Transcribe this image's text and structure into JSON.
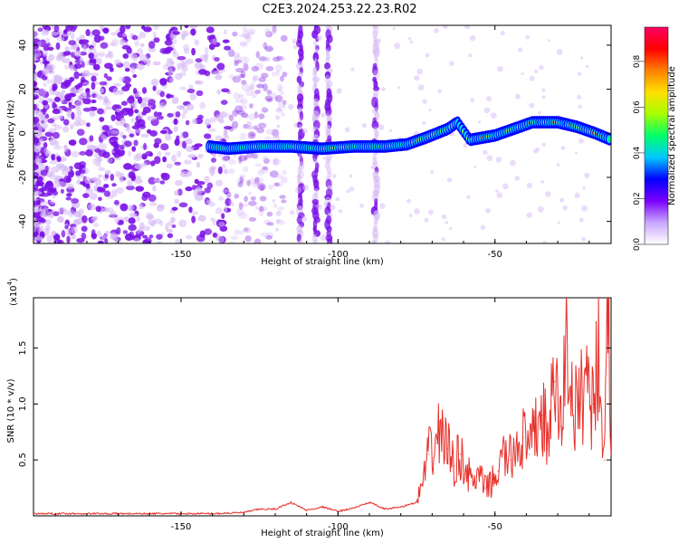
{
  "title": "C2E3.2024.253.22.23.R02",
  "colors": {
    "frame": "#000000",
    "snr_line": "#e8302a",
    "speckle_strong": "#7a10e6",
    "speckle_weak": "#d6b9f5",
    "colormap": [
      "#ffffff",
      "#c9a6ff",
      "#7a00ff",
      "#0000ff",
      "#00c8ff",
      "#00ff6a",
      "#a6ff00",
      "#ffe000",
      "#ff8000",
      "#ff0000",
      "#ff0066"
    ]
  },
  "chart_data": [
    {
      "id": "spectrogram",
      "type": "heatmap",
      "xlabel": "Height of straight line (km)",
      "ylabel": "Frequency (Hz)",
      "xlim": [
        -197,
        -13
      ],
      "ylim": [
        -50,
        49
      ],
      "xticks": [
        -150,
        -100,
        -50
      ],
      "yticks": [
        -40,
        -20,
        0,
        20,
        40
      ],
      "colorbar": {
        "label": "Normalized spectral amplitude",
        "range": [
          0.0,
          0.95
        ],
        "ticks": [
          0.0,
          0.2,
          0.4,
          0.6,
          0.8
        ]
      },
      "vertical_streaks_x": [
        -112,
        -107,
        -103,
        -88
      ],
      "ridge": [
        {
          "x": -141,
          "y": -6
        },
        {
          "x": -135,
          "y": -7
        },
        {
          "x": -125,
          "y": -6
        },
        {
          "x": -115,
          "y": -6
        },
        {
          "x": -105,
          "y": -7
        },
        {
          "x": -95,
          "y": -6
        },
        {
          "x": -85,
          "y": -6
        },
        {
          "x": -78,
          "y": -5
        },
        {
          "x": -72,
          "y": -2
        },
        {
          "x": -65,
          "y": 2
        },
        {
          "x": -62,
          "y": 5
        },
        {
          "x": -58,
          "y": -3
        },
        {
          "x": -50,
          "y": -1
        },
        {
          "x": -44,
          "y": 2
        },
        {
          "x": -38,
          "y": 5
        },
        {
          "x": -30,
          "y": 5
        },
        {
          "x": -24,
          "y": 3
        },
        {
          "x": -18,
          "y": 0
        },
        {
          "x": -13,
          "y": -3
        }
      ]
    },
    {
      "id": "snr",
      "type": "line",
      "xlabel": "Height of straight line (km)",
      "ylabel": "SNR (10 * v/v)",
      "yscale_label_base": "(x10",
      "yscale_label_exp": "4",
      "yscale_label_end": ")",
      "xlim": [
        -197,
        -13
      ],
      "ylim": [
        0,
        1.95
      ],
      "xticks": [
        -150,
        -100,
        -50
      ],
      "yticks": [
        0.5,
        1.0,
        1.5
      ],
      "ytick_labels": [
        "0.5",
        "1.0",
        "1.5"
      ],
      "series": [
        {
          "x": [
            -197,
            -180,
            -160,
            -140,
            -130,
            -125,
            -120,
            -115,
            -110,
            -105,
            -100,
            -95,
            -90,
            -85,
            -80,
            -75,
            -73,
            -71,
            -69,
            -67,
            -65,
            -63,
            -61,
            -59,
            -57,
            -55,
            -53,
            -51,
            -49,
            -47,
            -45,
            -43,
            -41,
            -39,
            -37,
            -35,
            -33,
            -31,
            -29,
            -27,
            -25,
            -23,
            -21,
            -19,
            -17,
            -15,
            -14,
            -13
          ],
          "y": [
            0.02,
            0.02,
            0.02,
            0.02,
            0.03,
            0.06,
            0.06,
            0.12,
            0.05,
            0.08,
            0.04,
            0.07,
            0.12,
            0.06,
            0.08,
            0.12,
            0.3,
            0.55,
            0.65,
            0.78,
            0.6,
            0.45,
            0.55,
            0.4,
            0.3,
            0.35,
            0.25,
            0.3,
            0.4,
            0.55,
            0.5,
            0.65,
            0.7,
            0.55,
            0.8,
            0.9,
            0.7,
            1.2,
            0.8,
            1.6,
            0.9,
            1.0,
            1.3,
            1.0,
            1.45,
            0.5,
            1.95,
            0.75
          ]
        }
      ]
    }
  ]
}
